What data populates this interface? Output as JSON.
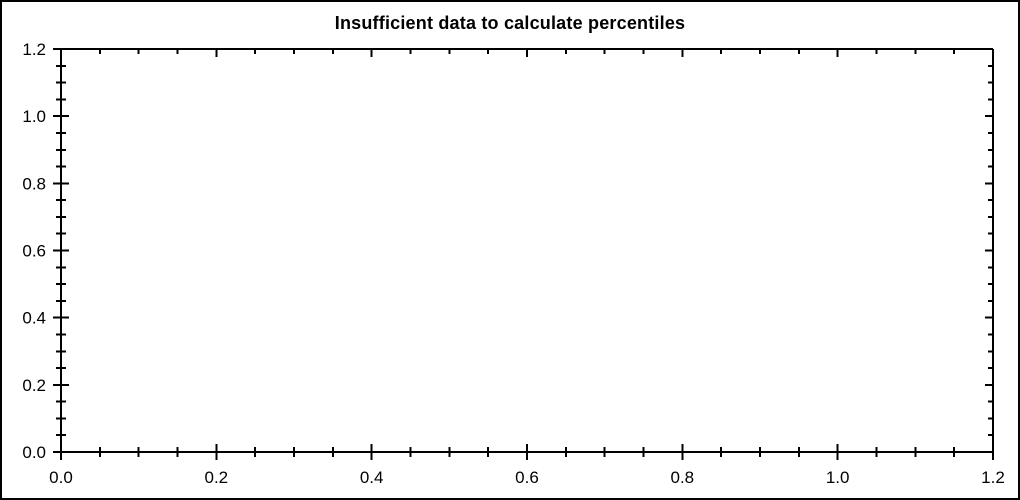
{
  "page": {
    "background_color": "#ffffff",
    "border_color": "#000000"
  },
  "chart_data": {
    "type": "scatter",
    "title": "Insufficient data to calculate percentiles",
    "series": [],
    "xlabel": "",
    "ylabel": "",
    "xlim": [
      0.0,
      1.2
    ],
    "ylim": [
      0.0,
      1.2
    ],
    "x_major_ticks": [
      0.0,
      0.2,
      0.4,
      0.6,
      0.8,
      1.0,
      1.2
    ],
    "y_major_ticks": [
      0.0,
      0.2,
      0.4,
      0.6,
      0.8,
      1.0,
      1.2
    ],
    "x_tick_labels": [
      "0.0",
      "0.2",
      "0.4",
      "0.6",
      "0.8",
      "1.0",
      "1.2"
    ],
    "y_tick_labels": [
      "0.0",
      "0.2",
      "0.4",
      "0.6",
      "0.8",
      "1.0",
      "1.2"
    ],
    "minor_tick_step": 0.05,
    "grid": false,
    "frame": true,
    "legend": null,
    "axis_color": "#000000",
    "text_color": "#000000",
    "plot_background": "#ffffff"
  }
}
